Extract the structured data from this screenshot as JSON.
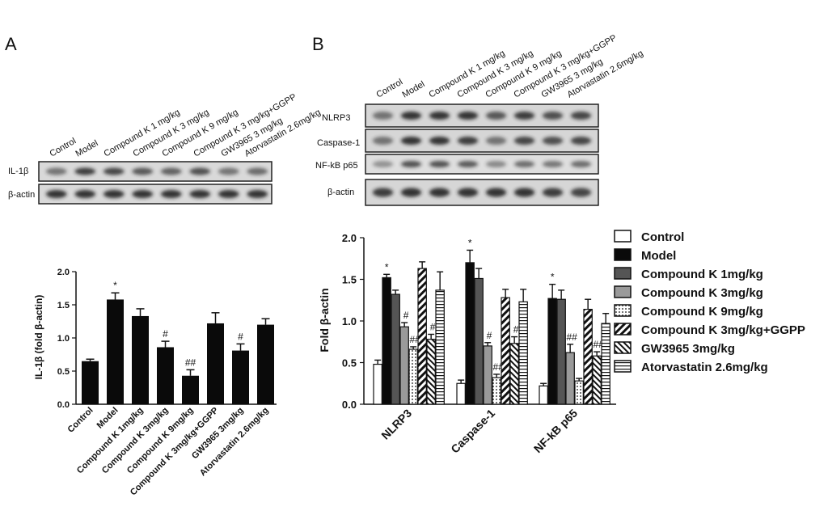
{
  "panels": {
    "a": "A",
    "b": "B"
  },
  "blot_a": {
    "lanes": [
      "Control",
      "Model",
      "Compound K 1 mg/kg",
      "Compound K 3 mg/kg",
      "Compound K 9 mg/kg",
      "Compound K 3 mg/kg+GGPP",
      "GW3965 3 mg/kg",
      "Atorvastatin 2.6mg/kg"
    ],
    "rows": [
      "IL-1β",
      "β-actin"
    ]
  },
  "blot_b": {
    "lanes": [
      "Control",
      "Model",
      "Compound K 1 mg/kg",
      "Compound K 3 mg/kg",
      "Compound K 9 mg/kg",
      "Compound K 3 mg/kg+GGPP",
      "GW3965 3 mg/kg",
      "Atorvastatin 2.6mg/kg"
    ],
    "rows": [
      "NLRP3",
      "Caspase-1",
      "NF-kB p65",
      "β-actin"
    ]
  },
  "chart_data": [
    {
      "type": "bar",
      "ylabel": "IL-1β (fold β-actin)",
      "ylim": [
        0,
        2.0
      ],
      "yticks": [
        "0.0",
        "0.5",
        "1.0",
        "1.5",
        "2.0"
      ],
      "categories": [
        "Control",
        "Model",
        "Compound K 1mg/kg",
        "Compound K 3mg/kg",
        "Compound K 9mg/kg",
        "Compound K 3mg/kg+GGPP",
        "GW3965 3mg/kg",
        "Atorvastatin 2.6mg/kg"
      ],
      "values": [
        0.65,
        1.58,
        1.33,
        0.86,
        0.43,
        1.22,
        0.81,
        1.2
      ],
      "errors": [
        0.03,
        0.1,
        0.11,
        0.09,
        0.09,
        0.16,
        0.1,
        0.09
      ],
      "annotations": [
        "",
        "*",
        "",
        "#",
        "##",
        "",
        "#",
        ""
      ]
    },
    {
      "type": "bar",
      "ylabel": "Fold β-actin",
      "ylim": [
        0,
        2.0
      ],
      "yticks": [
        "0.0",
        "0.5",
        "1.0",
        "1.5",
        "2.0"
      ],
      "categories": [
        "NLRP3",
        "Caspase-1",
        "NF-kB p65"
      ],
      "series": [
        {
          "name": "Control",
          "values": [
            0.48,
            0.25,
            0.22
          ],
          "errors": [
            0.05,
            0.04,
            0.03
          ],
          "annotations": [
            "",
            "",
            ""
          ]
        },
        {
          "name": "Model",
          "values": [
            1.52,
            1.7,
            1.27
          ],
          "errors": [
            0.04,
            0.15,
            0.17
          ],
          "annotations": [
            "*",
            "*",
            "*"
          ]
        },
        {
          "name": "Compound K 1mg/kg",
          "values": [
            1.32,
            1.51,
            1.26
          ],
          "errors": [
            0.05,
            0.12,
            0.11
          ],
          "annotations": [
            "",
            "",
            ""
          ]
        },
        {
          "name": "Compound K 3mg/kg",
          "values": [
            0.93,
            0.7,
            0.62
          ],
          "errors": [
            0.05,
            0.04,
            0.1
          ],
          "annotations": [
            "#",
            "#",
            "##"
          ]
        },
        {
          "name": "Compound K 9mg/kg",
          "values": [
            0.66,
            0.32,
            0.28
          ],
          "errors": [
            0.03,
            0.04,
            0.03
          ],
          "annotations": [
            "##",
            "##",
            ""
          ]
        },
        {
          "name": "Compound K 3mg/kg+GGPP",
          "values": [
            1.63,
            1.28,
            1.14
          ],
          "errors": [
            0.08,
            0.1,
            0.12
          ],
          "annotations": [
            "",
            "",
            ""
          ]
        },
        {
          "name": "GW3965 3mg/kg",
          "values": [
            0.78,
            0.73,
            0.58
          ],
          "errors": [
            0.06,
            0.08,
            0.05
          ],
          "annotations": [
            "#",
            "#",
            "##"
          ]
        },
        {
          "name": "Atorvastatin 2.6mg/kg",
          "values": [
            1.37,
            1.23,
            0.97
          ],
          "errors": [
            0.22,
            0.15,
            0.12
          ],
          "annotations": [
            "",
            "",
            ""
          ]
        }
      ]
    }
  ]
}
